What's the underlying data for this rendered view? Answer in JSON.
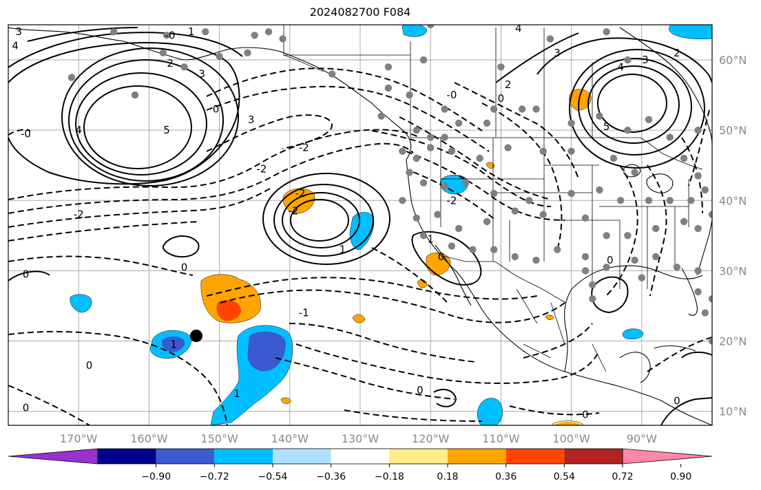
{
  "title": "2024082700 F084",
  "map": {
    "lon_range": [
      -180,
      -80
    ],
    "lat_range": [
      8,
      65
    ],
    "lon_labels": [
      "170°W",
      "160°W",
      "150°W",
      "140°W",
      "130°W",
      "120°W",
      "110°W",
      "100°W",
      "90°W"
    ],
    "lat_labels": [
      "60°N",
      "50°N",
      "40°N",
      "30°N",
      "20°N",
      "10°N"
    ],
    "gridlines": true,
    "contour_labels": [
      {
        "text": "3",
        "lon": -178.5,
        "lat": 64
      },
      {
        "text": "4",
        "lon": -179,
        "lat": 62
      },
      {
        "text": "-0",
        "lon": -157,
        "lat": 63.5
      },
      {
        "text": "1",
        "lon": -154,
        "lat": 64
      },
      {
        "text": "2",
        "lon": -157,
        "lat": 59.5
      },
      {
        "text": "3",
        "lon": -152.5,
        "lat": 58
      },
      {
        "text": "0",
        "lon": -150.5,
        "lat": 53
      },
      {
        "text": "3",
        "lon": -145.5,
        "lat": 51.5
      },
      {
        "text": "4",
        "lon": -170,
        "lat": 50
      },
      {
        "text": "5",
        "lon": -157.5,
        "lat": 50
      },
      {
        "text": "-0",
        "lon": -177.5,
        "lat": 49.5
      },
      {
        "text": "-2",
        "lon": -138,
        "lat": 47.5
      },
      {
        "text": "-2",
        "lon": -144,
        "lat": 44.5
      },
      {
        "text": "-2",
        "lon": -170,
        "lat": 38
      },
      {
        "text": "0",
        "lon": -155,
        "lat": 30.5
      },
      {
        "text": "0",
        "lon": -177.5,
        "lat": 29.5
      },
      {
        "text": "-2",
        "lon": -138.5,
        "lat": 41
      },
      {
        "text": "-2",
        "lon": -139.5,
        "lat": 38.5
      },
      {
        "text": "1",
        "lon": -132.5,
        "lat": 33
      },
      {
        "text": "-1",
        "lon": -138,
        "lat": 24
      },
      {
        "text": "0",
        "lon": -168.5,
        "lat": 16.5
      },
      {
        "text": "1",
        "lon": -156.5,
        "lat": 19.5
      },
      {
        "text": "1",
        "lon": -147.5,
        "lat": 12.5
      },
      {
        "text": "0",
        "lon": -177.5,
        "lat": 10.5
      },
      {
        "text": "-0",
        "lon": -117,
        "lat": 55
      },
      {
        "text": "-2",
        "lon": -117,
        "lat": 40
      },
      {
        "text": "1",
        "lon": -120,
        "lat": 34.5
      },
      {
        "text": "0",
        "lon": -118.5,
        "lat": 32
      },
      {
        "text": "2",
        "lon": -109,
        "lat": 56.5
      },
      {
        "text": "0",
        "lon": -110,
        "lat": 54.5
      },
      {
        "text": "4",
        "lon": -107.5,
        "lat": 64.5
      },
      {
        "text": "3",
        "lon": -102,
        "lat": 61
      },
      {
        "text": "4",
        "lon": -93,
        "lat": 59
      },
      {
        "text": "3",
        "lon": -89.5,
        "lat": 60
      },
      {
        "text": "5",
        "lon": -95,
        "lat": 50.5
      },
      {
        "text": "2",
        "lon": -85,
        "lat": 61
      },
      {
        "text": "0",
        "lon": -94.5,
        "lat": 31.5
      },
      {
        "text": "0",
        "lon": -121.5,
        "lat": 13
      },
      {
        "text": "0",
        "lon": -98,
        "lat": 9.5
      },
      {
        "text": "0",
        "lon": -85,
        "lat": 11.5
      }
    ]
  },
  "colorbar": {
    "tick_labels": [
      "−0.90",
      "−0.72",
      "−0.54",
      "−0.36",
      "−0.18",
      "0.18",
      "0.36",
      "0.54",
      "0.72",
      "0.90"
    ],
    "colors": [
      "#9932cc",
      "#00008b",
      "#3a5bd0",
      "#00bfff",
      "#b0e0ff",
      "#ffffff",
      "#ffec8b",
      "#ffa500",
      "#ff4500",
      "#b22222",
      "#ff88aa"
    ]
  },
  "colors": {
    "positive_contour": "#000000",
    "negative_contour": "#000000",
    "station_marker": "#808080",
    "highlight_marker": "#000000"
  }
}
